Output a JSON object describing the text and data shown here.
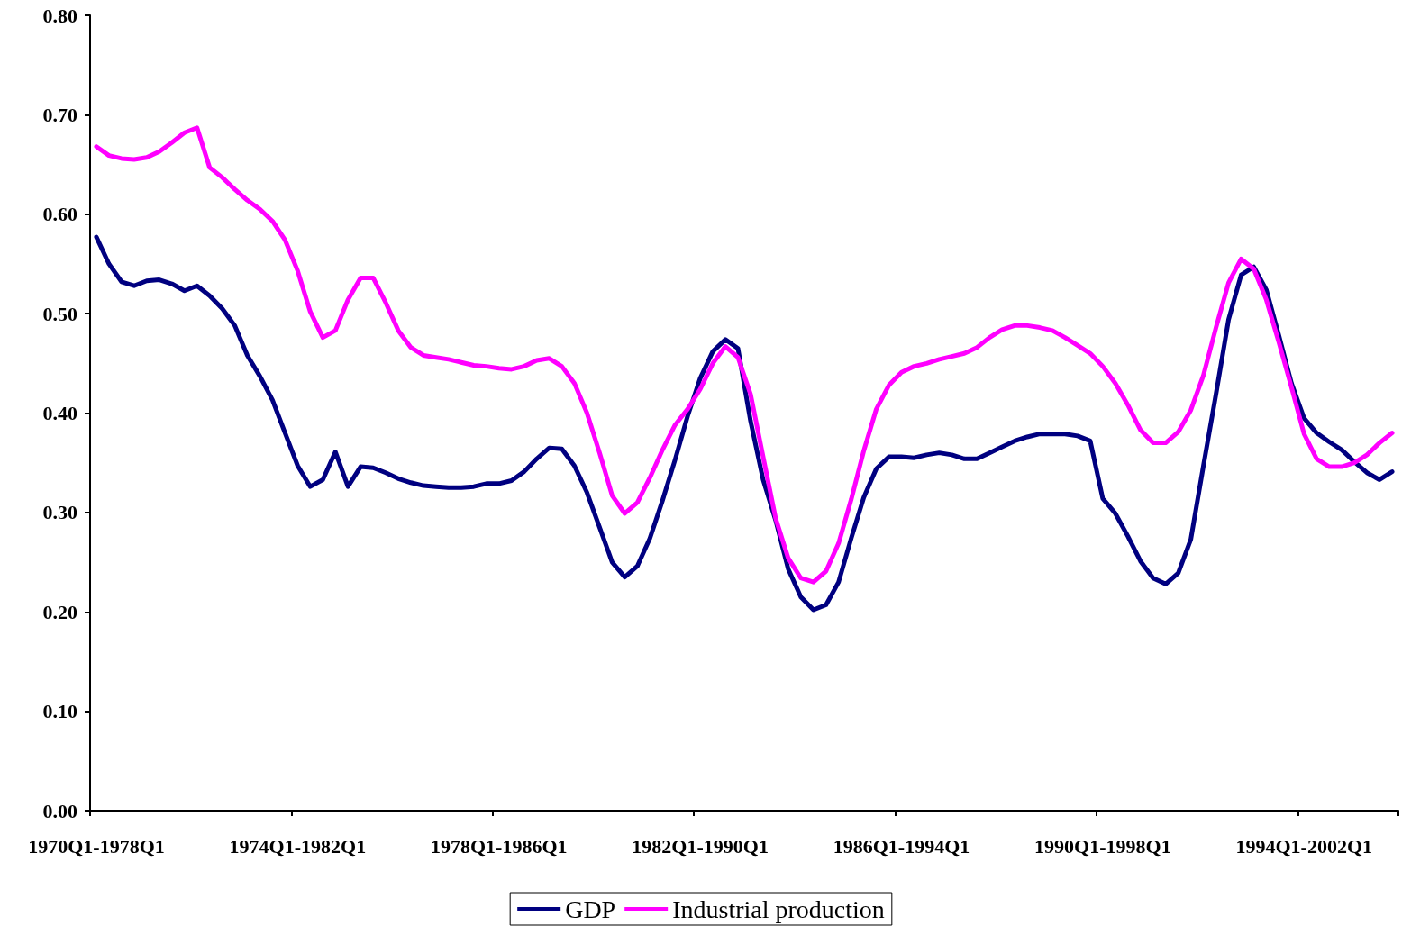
{
  "chart_data": {
    "type": "line",
    "categories": [
      "1970Q1-1978Q1",
      null,
      null,
      null,
      null,
      null,
      null,
      null,
      null,
      null,
      null,
      null,
      null,
      null,
      null,
      null,
      "1974Q1-1982Q1",
      null,
      null,
      null,
      null,
      null,
      null,
      null,
      null,
      null,
      null,
      null,
      null,
      null,
      null,
      null,
      "1978Q1-1986Q1",
      null,
      null,
      null,
      null,
      null,
      null,
      null,
      null,
      null,
      null,
      null,
      null,
      null,
      null,
      null,
      "1982Q1-1990Q1",
      null,
      null,
      null,
      null,
      null,
      null,
      null,
      null,
      null,
      null,
      null,
      null,
      null,
      null,
      null,
      "1986Q1-1994Q1",
      null,
      null,
      null,
      null,
      null,
      null,
      null,
      null,
      null,
      null,
      null,
      null,
      null,
      null,
      null,
      "1990Q1-1998Q1",
      null,
      null,
      null,
      null,
      null,
      null,
      null,
      null,
      null,
      null,
      null,
      null,
      null,
      null,
      null,
      "1994Q1-2002Q1",
      null,
      null,
      null,
      null,
      null,
      null,
      null
    ],
    "series": [
      {
        "name": "GDP",
        "color": "#000080",
        "values": [
          0.577,
          0.55,
          0.532,
          0.528,
          0.533,
          0.534,
          0.53,
          0.523,
          0.528,
          0.518,
          0.505,
          0.488,
          0.458,
          0.437,
          0.413,
          0.38,
          0.347,
          0.326,
          0.333,
          0.361,
          0.326,
          0.346,
          0.345,
          0.34,
          0.334,
          0.33,
          0.327,
          0.326,
          0.325,
          0.325,
          0.326,
          0.329,
          0.329,
          0.332,
          0.341,
          0.354,
          0.365,
          0.364,
          0.347,
          0.32,
          0.285,
          0.25,
          0.235,
          0.246,
          0.274,
          0.312,
          0.353,
          0.397,
          0.435,
          0.462,
          0.474,
          0.465,
          0.392,
          0.333,
          0.292,
          0.243,
          0.215,
          0.202,
          0.207,
          0.23,
          0.274,
          0.315,
          0.344,
          0.356,
          0.356,
          0.355,
          0.358,
          0.36,
          0.358,
          0.354,
          0.354,
          0.36,
          0.366,
          0.372,
          0.376,
          0.379,
          0.379,
          0.379,
          0.377,
          0.372,
          0.314,
          0.299,
          0.276,
          0.251,
          0.234,
          0.228,
          0.239,
          0.273,
          0.347,
          0.419,
          0.494,
          0.539,
          0.547,
          0.524,
          0.478,
          0.43,
          0.395,
          0.38,
          0.371,
          0.363,
          0.351,
          0.34,
          0.333,
          0.341
        ]
      },
      {
        "name": "Industrial production",
        "color": "#ff00ff",
        "values": [
          0.668,
          0.659,
          0.656,
          0.655,
          0.657,
          0.663,
          0.672,
          0.682,
          0.687,
          0.647,
          0.637,
          0.625,
          0.614,
          0.605,
          0.593,
          0.574,
          0.543,
          0.502,
          0.476,
          0.483,
          0.514,
          0.536,
          0.536,
          0.511,
          0.483,
          0.466,
          0.458,
          0.456,
          0.454,
          0.451,
          0.448,
          0.447,
          0.445,
          0.444,
          0.447,
          0.453,
          0.455,
          0.447,
          0.43,
          0.4,
          0.36,
          0.317,
          0.299,
          0.31,
          0.335,
          0.363,
          0.388,
          0.404,
          0.424,
          0.45,
          0.467,
          0.456,
          0.419,
          0.356,
          0.294,
          0.254,
          0.234,
          0.23,
          0.241,
          0.269,
          0.313,
          0.362,
          0.404,
          0.428,
          0.441,
          0.447,
          0.45,
          0.454,
          0.457,
          0.46,
          0.466,
          0.476,
          0.484,
          0.488,
          0.488,
          0.486,
          0.483,
          0.476,
          0.468,
          0.46,
          0.447,
          0.43,
          0.408,
          0.383,
          0.37,
          0.37,
          0.381,
          0.403,
          0.438,
          0.486,
          0.531,
          0.555,
          0.545,
          0.514,
          0.471,
          0.426,
          0.379,
          0.354,
          0.346,
          0.346,
          0.35,
          0.358,
          0.37,
          0.38
        ]
      }
    ],
    "ylim": [
      0,
      0.8
    ],
    "yticks": [
      {
        "value": 0,
        "label": "0.00"
      },
      {
        "value": 0.1,
        "label": "0.10"
      },
      {
        "value": 0.2,
        "label": "0.20"
      },
      {
        "value": 0.3,
        "label": "0.30"
      },
      {
        "value": 0.4,
        "label": "0.40"
      },
      {
        "value": 0.5,
        "label": "0.50"
      },
      {
        "value": 0.6,
        "label": "0.60"
      },
      {
        "value": 0.7,
        "label": "0.70"
      },
      {
        "value": 0.8,
        "label": "0.80"
      }
    ],
    "grid": false,
    "legend": "bottom",
    "marker": "none",
    "line_style": "solid"
  }
}
